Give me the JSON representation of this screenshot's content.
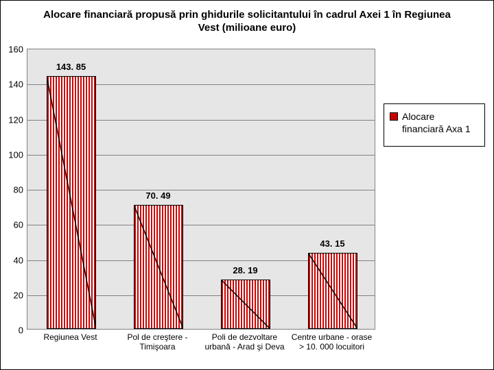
{
  "title": "Alocare financiară propusă prin ghidurile solicitantului în cadrul Axei 1 în Regiunea Vest (milioane euro)",
  "chart": {
    "type": "bar",
    "ylim": [
      0,
      160
    ],
    "ytick_step": 20,
    "yticks": [
      0,
      20,
      40,
      60,
      80,
      100,
      120,
      140,
      160
    ],
    "plot_bg": "#e6e6e6",
    "grid_color": "#808080",
    "bar_color": "#cc0000",
    "bar_stripe_bg": "#ffffff",
    "bar_border": "#000000",
    "frame_border": "#000000",
    "title_fontsize": 15,
    "label_fontsize": 13,
    "xlabel_fontsize": 12,
    "categories": [
      "Regiunea Vest",
      "Pol de creştere - Timişoara",
      "Poli de dezvoltare urbană - Arad şi Deva",
      "Centre urbane - orase > 10. 000 locuitori"
    ],
    "values": [
      143.85,
      70.49,
      28.19,
      43.15
    ],
    "value_labels": [
      "143. 85",
      "70. 49",
      "28. 19",
      "43. 15"
    ]
  },
  "legend": {
    "label": "Alocare financiară Axa 1",
    "swatch_color": "#cc0000"
  }
}
